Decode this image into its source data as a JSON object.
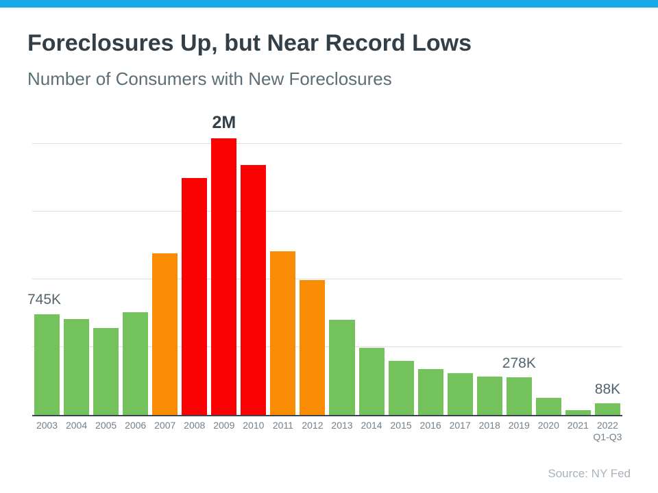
{
  "colors": {
    "accent": "#18A9E8",
    "title": "#333F48",
    "subtitle": "#5B6E78",
    "green": "#74C25B",
    "orange": "#FA8C03",
    "red": "#FA0202",
    "grid": "#DBE1E1",
    "axis": "#39444E",
    "tick": "#71808D",
    "annotation": "#53646F",
    "annotation_strong": "#333F48",
    "source": "#A9B2BA"
  },
  "header": {
    "title": "Foreclosures Up, but Near Record Lows",
    "subtitle": "Number of Consumers with New Foreclosures"
  },
  "source": {
    "label": "Source: NY Fed"
  },
  "chart_data": {
    "type": "bar",
    "title": "Foreclosures Up, but Near Record Lows",
    "subtitle": "Number of Consumers with New Foreclosures",
    "unit": "thousands of consumers",
    "categories": [
      "2003",
      "2004",
      "2005",
      "2006",
      "2007",
      "2008",
      "2009",
      "2010",
      "2011",
      "2012",
      "2013",
      "2014",
      "2015",
      "2016",
      "2017",
      "2018",
      "2019",
      "2020",
      "2021",
      "2022\nQ1-Q3"
    ],
    "values": [
      745,
      705,
      640,
      757,
      1190,
      1750,
      2040,
      1843,
      1205,
      995,
      700,
      495,
      398,
      338,
      308,
      283,
      278,
      127,
      36,
      88
    ],
    "bar_colors": [
      "green",
      "green",
      "green",
      "green",
      "orange",
      "red",
      "red",
      "red",
      "orange",
      "orange",
      "green",
      "green",
      "green",
      "green",
      "green",
      "green",
      "green",
      "green",
      "green",
      "green"
    ],
    "ylim": [
      0,
      2222
    ],
    "gridlines": [
      500,
      1000,
      1500,
      2000
    ],
    "y_axis_labels": false,
    "legend": false,
    "grid": true,
    "annotations": [
      {
        "text": "745K",
        "col": 0,
        "anchor": "left",
        "strong": false
      },
      {
        "text": "2M",
        "col": 6,
        "anchor": "center",
        "strong": true
      },
      {
        "text": "278K",
        "col": 16,
        "anchor": "center",
        "strong": false
      },
      {
        "text": "88K",
        "col": 19,
        "anchor": "center",
        "strong": false
      }
    ]
  }
}
